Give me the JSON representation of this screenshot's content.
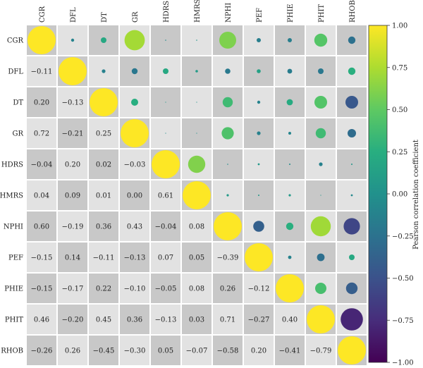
{
  "chart_data": {
    "type": "heatmap",
    "title": "",
    "variables": [
      "CGR",
      "DFL",
      "DT",
      "GR",
      "HDRS",
      "HMRS",
      "NPHI",
      "PEF",
      "PHIE",
      "PHIT",
      "RHOB"
    ],
    "lower_triangle_values": [
      [],
      [
        "−0.11"
      ],
      [
        "0.20",
        "−0.13"
      ],
      [
        "0.72",
        "−0.21",
        "0.25"
      ],
      [
        "−0.04",
        "0.20",
        "0.02",
        "−0.03"
      ],
      [
        "0.04",
        "0.09",
        "0.01",
        "0.00",
        "0.61"
      ],
      [
        "0.60",
        "−0.19",
        "0.36",
        "0.43",
        "−0.04",
        "0.08"
      ],
      [
        "−0.15",
        "0.14",
        "−0.11",
        "−0.13",
        "0.07",
        "0.05",
        "−0.39"
      ],
      [
        "−0.15",
        "−0.17",
        "0.22",
        "−0.10",
        "−0.05",
        "0.08",
        "0.26",
        "−0.12"
      ],
      [
        "0.46",
        "−0.20",
        "0.45",
        "0.36",
        "−0.13",
        "0.03",
        "0.71",
        "−0.27",
        "0.40"
      ],
      [
        "−0.26",
        "0.26",
        "−0.45",
        "−0.30",
        "0.05",
        "−0.07",
        "−0.58",
        "0.20",
        "−0.41",
        "−0.79"
      ]
    ],
    "colorbar": {
      "label": "Pearson correlation coefficient",
      "min": -1.0,
      "max": 1.0,
      "ticks": [
        "1.00",
        "0.75",
        "0.50",
        "0.25",
        "0.00",
        "−0.25",
        "−0.50",
        "−0.75",
        "−1.00"
      ],
      "colormap": "viridis"
    },
    "upper_triangle": "circles sized and colored by correlation",
    "diagonal": "circles with correlation 1.00"
  }
}
